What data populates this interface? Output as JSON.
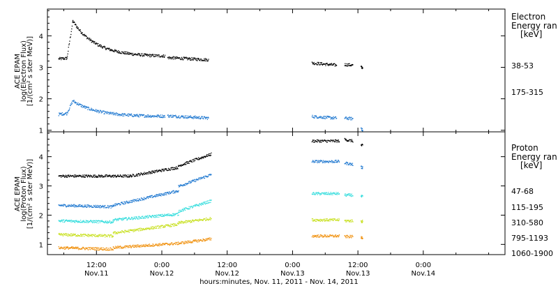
{
  "colors": {
    "black": "#000000",
    "blue": "#1f78d0",
    "cyan": "#33dddd",
    "yellow": "#c8e020",
    "orange": "#f0900c"
  },
  "chart_data": [
    {
      "type": "scatter",
      "panel": "electron",
      "ylabel": [
        "ACE EPAM",
        "log(Electron Flux)",
        "[1/(cm² s ster MeV)]"
      ],
      "ylim": [
        0.95,
        4.85
      ],
      "yticks": [
        1,
        2,
        3,
        4
      ],
      "legend_title": [
        "Electron",
        "Energy ran",
        "[keV]"
      ],
      "legend_placement": "right",
      "series": [
        {
          "name": "38-53",
          "color": "#000000",
          "segments": [
            {
              "x": [
                5.0,
                6.5
              ],
              "y": [
                3.28,
                3.3
              ]
            },
            {
              "x": [
                6.5,
                7.6
              ],
              "y": [
                3.3,
                4.48
              ]
            },
            {
              "x": [
                7.6,
                24.5
              ],
              "y": [
                4.48,
                3.35
              ],
              "decay": true
            },
            {
              "x": [
                25.0,
                32.5
              ],
              "y": [
                3.32,
                3.25
              ]
            },
            {
              "x": [
                51.5,
                56.0
              ],
              "y": [
                3.15,
                3.08
              ]
            },
            {
              "x": [
                57.5,
                59.0
              ],
              "y": [
                3.1,
                3.08
              ]
            },
            {
              "x": [
                60.5,
                60.8
              ],
              "y": [
                3.02,
                3.0
              ]
            }
          ]
        },
        {
          "name": "175-315",
          "color": "#1f78d0",
          "segments": [
            {
              "x": [
                5.0,
                6.5
              ],
              "y": [
                1.52,
                1.55
              ]
            },
            {
              "x": [
                6.5,
                7.6
              ],
              "y": [
                1.55,
                1.95
              ]
            },
            {
              "x": [
                7.6,
                24.5
              ],
              "y": [
                1.95,
                1.45
              ],
              "decay": true
            },
            {
              "x": [
                25.0,
                32.5
              ],
              "y": [
                1.47,
                1.4
              ]
            },
            {
              "x": [
                51.5,
                56.0
              ],
              "y": [
                1.45,
                1.4
              ]
            },
            {
              "x": [
                57.5,
                59.0
              ],
              "y": [
                1.4,
                1.38
              ]
            },
            {
              "x": [
                60.5,
                60.8
              ],
              "y": [
                1.1,
                1.0
              ]
            }
          ]
        }
      ]
    },
    {
      "type": "scatter",
      "panel": "proton",
      "ylabel": [
        "ACE EPAM",
        "log(Proton Flux)",
        "[1/(cm² s ster MeV)]"
      ],
      "ylim": [
        0.65,
        4.85
      ],
      "yticks": [
        1,
        2,
        3,
        4
      ],
      "legend_title": [
        "Proton",
        "Energy ran",
        "[keV]"
      ],
      "legend_placement": "right",
      "series": [
        {
          "name": "47-68",
          "color": "#000000",
          "segments": [
            {
              "x": [
                5.0,
                18.0
              ],
              "y": [
                3.35,
                3.35
              ]
            },
            {
              "x": [
                18.0,
                27.0
              ],
              "y": [
                3.35,
                3.65
              ]
            },
            {
              "x": [
                27.0,
                33.0
              ],
              "y": [
                3.7,
                4.1
              ]
            },
            {
              "x": [
                51.5,
                56.5
              ],
              "y": [
                4.55,
                4.55
              ]
            },
            {
              "x": [
                57.5,
                59.0
              ],
              "y": [
                4.6,
                4.55
              ]
            },
            {
              "x": [
                60.5,
                60.8
              ],
              "y": [
                4.4,
                4.4
              ]
            }
          ]
        },
        {
          "name": "115-195",
          "color": "#1f78d0",
          "segments": [
            {
              "x": [
                5.0,
                15.0
              ],
              "y": [
                2.35,
                2.3
              ]
            },
            {
              "x": [
                15.0,
                27.0
              ],
              "y": [
                2.35,
                2.85
              ]
            },
            {
              "x": [
                27.0,
                33.0
              ],
              "y": [
                3.0,
                3.4
              ]
            },
            {
              "x": [
                51.5,
                56.5
              ],
              "y": [
                3.85,
                3.85
              ]
            },
            {
              "x": [
                57.5,
                59.0
              ],
              "y": [
                3.8,
                3.75
              ]
            },
            {
              "x": [
                60.5,
                60.8
              ],
              "y": [
                3.65,
                3.65
              ]
            }
          ]
        },
        {
          "name": "310-580",
          "color": "#33dddd",
          "segments": [
            {
              "x": [
                5.0,
                15.0
              ],
              "y": [
                1.82,
                1.78
              ]
            },
            {
              "x": [
                15.0,
                27.0
              ],
              "y": [
                1.85,
                2.05
              ]
            },
            {
              "x": [
                27.0,
                33.0
              ],
              "y": [
                2.15,
                2.5
              ]
            },
            {
              "x": [
                51.5,
                56.5
              ],
              "y": [
                2.75,
                2.75
              ]
            },
            {
              "x": [
                57.5,
                59.0
              ],
              "y": [
                2.7,
                2.7
              ]
            },
            {
              "x": [
                60.5,
                60.8
              ],
              "y": [
                2.65,
                2.65
              ]
            }
          ]
        },
        {
          "name": "795-1193",
          "color": "#c8e020",
          "segments": [
            {
              "x": [
                5.0,
                15.0
              ],
              "y": [
                1.35,
                1.3
              ]
            },
            {
              "x": [
                15.0,
                27.0
              ],
              "y": [
                1.4,
                1.7
              ]
            },
            {
              "x": [
                27.0,
                33.0
              ],
              "y": [
                1.75,
                1.9
              ]
            },
            {
              "x": [
                51.5,
                56.5
              ],
              "y": [
                1.85,
                1.85
              ]
            },
            {
              "x": [
                57.5,
                59.0
              ],
              "y": [
                1.82,
                1.82
              ]
            },
            {
              "x": [
                60.5,
                60.8
              ],
              "y": [
                1.8,
                1.8
              ]
            }
          ]
        },
        {
          "name": "1060-1900",
          "color": "#f0900c",
          "segments": [
            {
              "x": [
                5.0,
                15.0
              ],
              "y": [
                0.9,
                0.85
              ]
            },
            {
              "x": [
                15.0,
                27.0
              ],
              "y": [
                0.9,
                1.05
              ]
            },
            {
              "x": [
                27.0,
                33.0
              ],
              "y": [
                1.05,
                1.2
              ]
            },
            {
              "x": [
                51.5,
                56.5
              ],
              "y": [
                1.3,
                1.3
              ]
            },
            {
              "x": [
                57.5,
                59.0
              ],
              "y": [
                1.28,
                1.28
              ]
            },
            {
              "x": [
                60.5,
                60.8
              ],
              "y": [
                1.25,
                1.25
              ]
            }
          ]
        }
      ]
    }
  ],
  "x_axis": {
    "unit": "hours since Nov. 11, 2011 00:00",
    "xlim": [
      3.0,
      87.0
    ],
    "ticks": [
      {
        "x": 12,
        "time": "12:00",
        "date": "Nov.11"
      },
      {
        "x": 24,
        "time": "0:00",
        "date": "Nov.12"
      },
      {
        "x": 36,
        "time": "12:00",
        "date": "Nov.12"
      },
      {
        "x": 48,
        "time": "0:00",
        "date": "Nov.13"
      },
      {
        "x": 60,
        "time": "12:00",
        "date": "Nov.13"
      },
      {
        "x": 72,
        "time": "0:00",
        "date": "Nov.14"
      }
    ],
    "label": "hours:minutes, Nov. 11, 2011 - Nov. 14, 2011"
  }
}
